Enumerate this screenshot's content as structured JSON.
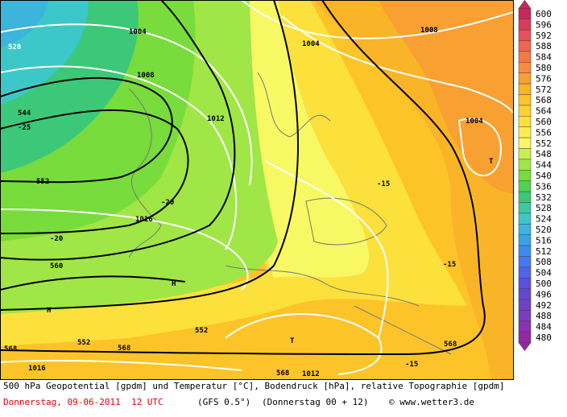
{
  "map": {
    "labels": [
      "1004",
      "1004",
      "1008",
      "1008",
      "1012",
      "1004",
      "528",
      "544",
      "-25",
      "552",
      "-20",
      "-15",
      "1016",
      "-20",
      "560",
      "-15",
      "H",
      "H",
      "552",
      "T",
      "T",
      "552",
      "568",
      "568",
      "568",
      "1016",
      "568",
      "1012",
      "-15"
    ]
  },
  "colorbar": {
    "levels": [
      600,
      596,
      592,
      588,
      584,
      580,
      576,
      572,
      568,
      564,
      560,
      556,
      552,
      548,
      544,
      540,
      536,
      532,
      528,
      524,
      520,
      516,
      512,
      508,
      504,
      500,
      496,
      492,
      488,
      484,
      480
    ],
    "colors": [
      "#c8285a",
      "#d83c5a",
      "#e8505a",
      "#f06450",
      "#f47846",
      "#f88c3c",
      "#f8a032",
      "#fab428",
      "#fcc428",
      "#fcd232",
      "#fce03c",
      "#fcec50",
      "#f8f864",
      "#c8f050",
      "#a0e646",
      "#78dc3c",
      "#50d250",
      "#3cc878",
      "#3cc8a0",
      "#3cc8c8",
      "#3cb4dc",
      "#3ca0e6",
      "#3c8cf0",
      "#4678f0",
      "#5064e6",
      "#5a50dc",
      "#6446d2",
      "#7040c8",
      "#7c3cbe",
      "#8832b4",
      "#9428a0"
    ]
  },
  "footer": {
    "line1": "500 hPa Geopotential [gpdm] und Temperatur [°C], Bodendruck [hPa], relative Topographie [gpdm]",
    "date": "Donnerstag, 09-06-2011  12 UTC",
    "model": "(GFS 0.5°)",
    "run": "(Donnerstag 00 + 12)",
    "copyright": "© www.wetter3.de"
  }
}
